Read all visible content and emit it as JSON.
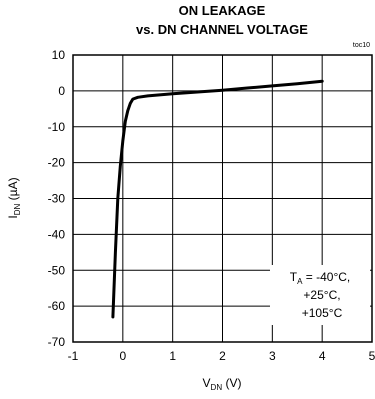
{
  "chart_data": {
    "type": "line",
    "title_line1": "ON LEAKAGE",
    "title_line2": "vs. DN CHANNEL VOLTAGE",
    "tag": "toc10",
    "xlabel": {
      "main": "V",
      "sub": "DN",
      "unit": " (V)"
    },
    "ylabel": {
      "main": "I",
      "sub": "DN",
      "unit": " (µA)"
    },
    "xlim": [
      -1,
      5
    ],
    "ylim": [
      -70,
      10
    ],
    "x_ticks": [
      "-1",
      "0",
      "1",
      "2",
      "3",
      "4",
      "5"
    ],
    "y_ticks": [
      "10",
      "0",
      "-10",
      "-20",
      "-30",
      "-40",
      "-50",
      "-60",
      "-70"
    ],
    "grid": true,
    "annotation": {
      "line1_main": "T",
      "line1_sub": "A",
      "line1_rest": " = -40°C,",
      "line2": "+25°C,",
      "line3": "+105°C"
    },
    "series": [
      {
        "x": [
          -0.2,
          -0.15,
          -0.1,
          -0.05,
          0.0,
          0.05,
          0.1,
          0.15,
          0.2,
          0.3,
          0.5,
          1.0,
          1.5,
          2.0,
          2.5,
          3.0,
          3.5,
          4.0
        ],
        "y": [
          -63,
          -45,
          -30,
          -21,
          -14,
          -8.5,
          -5.5,
          -3.5,
          -2.3,
          -1.8,
          -1.4,
          -0.8,
          -0.3,
          0.2,
          0.8,
          1.4,
          2.0,
          2.7
        ]
      }
    ]
  }
}
